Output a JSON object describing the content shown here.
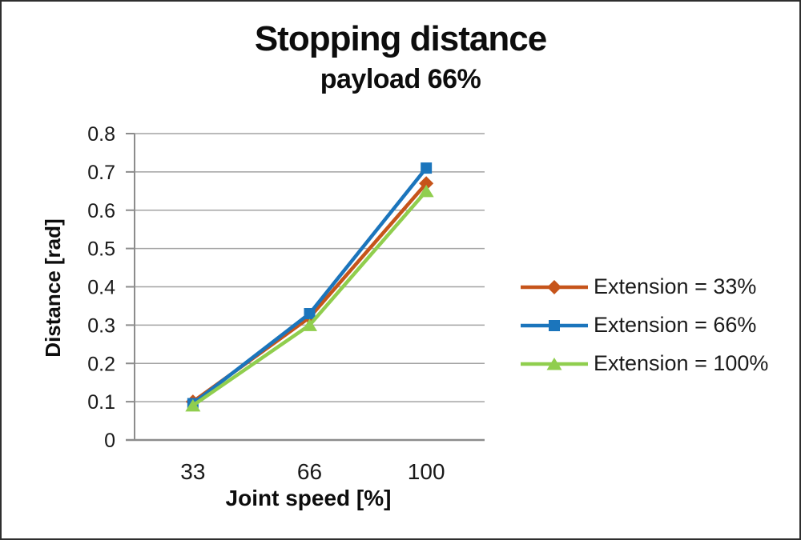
{
  "chart_data": {
    "type": "line",
    "title": "Stopping distance",
    "subtitle": "payload 66%",
    "xlabel": "Joint speed [%]",
    "ylabel": "Distance [rad]",
    "categories": [
      "33",
      "66",
      "100"
    ],
    "series": [
      {
        "name": "Extension = 33%",
        "marker": "diamond",
        "color": "#C6541A",
        "values": [
          0.1,
          0.32,
          0.67
        ]
      },
      {
        "name": "Extension = 66%",
        "marker": "square",
        "color": "#1B75BC",
        "values": [
          0.095,
          0.33,
          0.71
        ]
      },
      {
        "name": "Extension = 100%",
        "marker": "triangle",
        "color": "#90CE4E",
        "values": [
          0.09,
          0.3,
          0.65
        ]
      }
    ],
    "ylim": [
      0,
      0.8
    ],
    "ytick_step": 0.1,
    "yticks": [
      "0.8",
      "0.7",
      "0.6",
      "0.5",
      "0.4",
      "0.3",
      "0.2",
      "0.1",
      "0"
    ],
    "grid": true,
    "grid_color": "#A3A3A3",
    "axis_color": "#8C8C8C",
    "legend_position": "right"
  }
}
